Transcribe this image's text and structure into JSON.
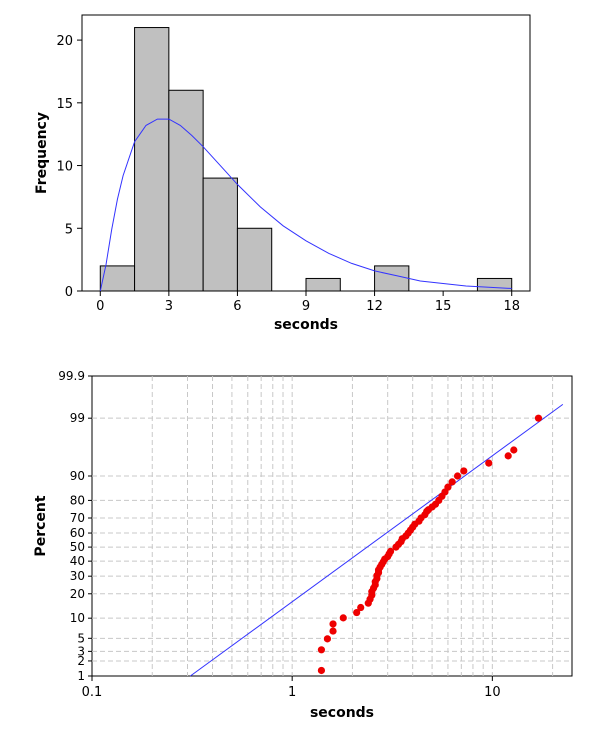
{
  "chart_data": [
    {
      "type": "bar",
      "subtype": "histogram-with-fitted-density",
      "title": "",
      "xlabel": "seconds",
      "ylabel": "Frequency",
      "xlim": [
        -0.8,
        18.8
      ],
      "ylim": [
        0,
        22
      ],
      "xticks": [
        0,
        3,
        6,
        9,
        12,
        15,
        18
      ],
      "yticks": [
        0,
        5,
        10,
        15,
        20
      ],
      "xtick_labels": [
        "0",
        "3",
        "6",
        "9",
        "12",
        "15",
        "18"
      ],
      "ytick_labels": [
        "0",
        "5",
        "10",
        "15",
        "20"
      ],
      "bin_width": 1.5,
      "bins": [
        {
          "start": 0,
          "end": 1.5,
          "count": 2
        },
        {
          "start": 1.5,
          "end": 3,
          "count": 21
        },
        {
          "start": 3,
          "end": 4.5,
          "count": 16
        },
        {
          "start": 4.5,
          "end": 6,
          "count": 9
        },
        {
          "start": 6,
          "end": 7.5,
          "count": 5
        },
        {
          "start": 7.5,
          "end": 9,
          "count": 0
        },
        {
          "start": 9,
          "end": 10.5,
          "count": 1
        },
        {
          "start": 10.5,
          "end": 12,
          "count": 0
        },
        {
          "start": 12,
          "end": 13.5,
          "count": 2
        },
        {
          "start": 13.5,
          "end": 15,
          "count": 0
        },
        {
          "start": 15,
          "end": 16.5,
          "count": 0
        },
        {
          "start": 16.5,
          "end": 18,
          "count": 1
        }
      ],
      "fit_curve": {
        "x": [
          0,
          0.25,
          0.5,
          0.75,
          1,
          1.5,
          2,
          2.5,
          3,
          3.5,
          4,
          4.5,
          5,
          5.5,
          6,
          7,
          8,
          9,
          10,
          11,
          12,
          13,
          14,
          15,
          16,
          17,
          18
        ],
        "y": [
          0,
          2.1,
          4.9,
          7.3,
          9.2,
          11.9,
          13.2,
          13.7,
          13.7,
          13.2,
          12.4,
          11.5,
          10.5,
          9.5,
          8.5,
          6.7,
          5.2,
          4.0,
          3.0,
          2.2,
          1.6,
          1.2,
          0.8,
          0.6,
          0.4,
          0.3,
          0.2
        ]
      },
      "grid": false,
      "colors": {
        "bar_fill": "#c0c0c0",
        "bar_edge": "#000000",
        "curve": "#3333ff"
      }
    },
    {
      "type": "scatter",
      "subtype": "lognormal-probability-plot",
      "title": "",
      "xlabel": "seconds",
      "ylabel": "Percent",
      "xscale": "log",
      "yscale": "probability",
      "xlim": [
        0.1,
        25
      ],
      "ylim": [
        1,
        99.9
      ],
      "xticks": [
        0.1,
        1,
        10
      ],
      "xtick_labels": [
        "0.1",
        "1",
        "10"
      ],
      "yticks": [
        1,
        2,
        3,
        5,
        10,
        20,
        30,
        40,
        50,
        60,
        70,
        80,
        90,
        99,
        99.9
      ],
      "ytick_labels": [
        "1",
        "2",
        "3",
        "5",
        "10",
        "20",
        "30",
        "40",
        "50",
        "60",
        "70",
        "80",
        "90",
        "99",
        "99.9"
      ],
      "fit_line": {
        "x": [
          0.31,
          22.5
        ],
        "y": [
          1,
          99.5
        ]
      },
      "points": {
        "x": [
          1.4,
          1.4,
          1.5,
          1.6,
          1.6,
          1.8,
          2.1,
          2.2,
          2.4,
          2.45,
          2.5,
          2.5,
          2.55,
          2.6,
          2.6,
          2.65,
          2.65,
          2.7,
          2.7,
          2.75,
          2.8,
          2.85,
          2.9,
          3.0,
          3.05,
          3.1,
          3.3,
          3.4,
          3.5,
          3.55,
          3.7,
          3.8,
          3.9,
          4.0,
          4.1,
          4.3,
          4.4,
          4.6,
          4.7,
          4.8,
          5.0,
          5.2,
          5.4,
          5.6,
          5.8,
          6.0,
          6.3,
          6.7,
          7.2,
          9.6,
          12.0,
          12.8,
          17.0
        ],
        "y": [
          1.3,
          3.2,
          4.9,
          6.5,
          8.3,
          10.1,
          11.9,
          13.8,
          15.6,
          17.4,
          19.3,
          21.1,
          23.0,
          24.8,
          26.6,
          28.5,
          30.3,
          32.2,
          34.0,
          35.9,
          37.7,
          39.5,
          41.4,
          43.2,
          45.1,
          46.9,
          50.0,
          52.0,
          54.0,
          56.0,
          58.0,
          60.0,
          62.0,
          64.0,
          66.0,
          68.0,
          70.0,
          72.0,
          74.0,
          75.0,
          76.5,
          78.0,
          80.0,
          82.0,
          84.0,
          86.0,
          88.0,
          90.0,
          91.5,
          93.5,
          95.0,
          96.0,
          99.0
        ]
      },
      "grid": true,
      "colors": {
        "points": "#ee0000",
        "line": "#3333ff",
        "grid": "#c8c8c8"
      }
    }
  ]
}
